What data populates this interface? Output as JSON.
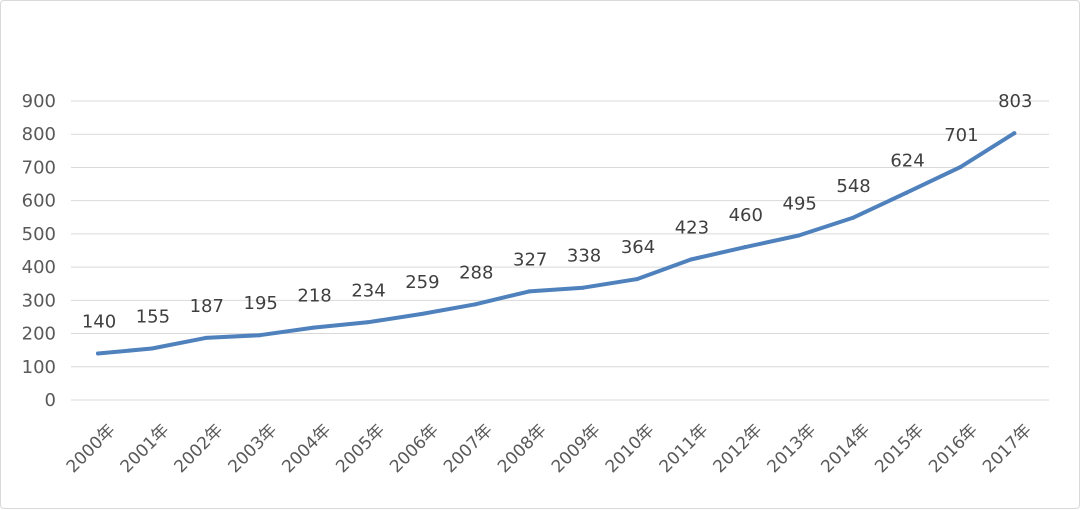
{
  "chart_data": {
    "type": "line",
    "title": "",
    "xlabel": "",
    "ylabel": "",
    "categories": [
      "2000年",
      "2001年",
      "2002年",
      "2003年",
      "2004年",
      "2005年",
      "2006年",
      "2007年",
      "2008年",
      "2009年",
      "2010年",
      "2011年",
      "2012年",
      "2013年",
      "2014年",
      "2015年",
      "2016年",
      "2017年"
    ],
    "series": [
      {
        "values": [
          140,
          155,
          187,
          195,
          218,
          234,
          259,
          288,
          327,
          338,
          364,
          423,
          460,
          495,
          548,
          624,
          701,
          803
        ]
      }
    ],
    "ylim": [
      0,
      900
    ],
    "yticks": [
      0,
      100,
      200,
      300,
      400,
      500,
      600,
      700,
      800,
      900
    ],
    "grid": true,
    "legend": "none",
    "data_labels": true,
    "colors": {
      "line": "#4f81bd",
      "grid": "#d9d9d9",
      "text": "#595959"
    }
  }
}
